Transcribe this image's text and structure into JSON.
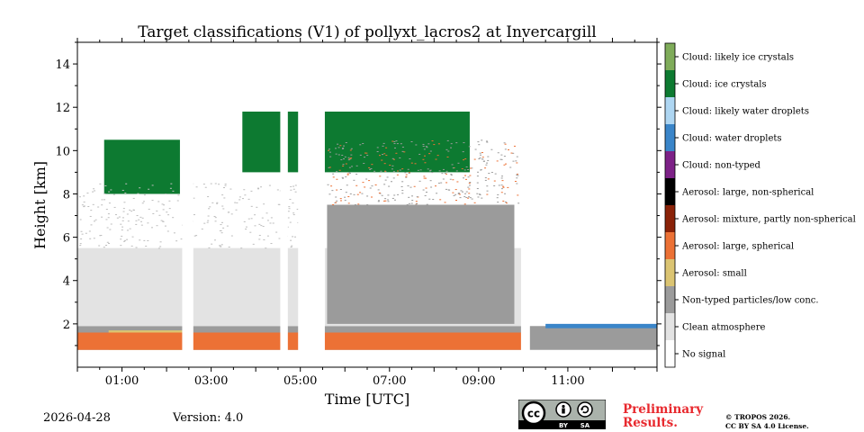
{
  "chart_data": {
    "type": "heatmap",
    "title": "Target classifications (V1) of pollyxt_lacros2 at Invercargill",
    "xlabel": "Time [UTC]",
    "ylabel": "Height [km]",
    "xlim_hours": [
      0,
      13.0
    ],
    "ylim_km": [
      0,
      15
    ],
    "x_ticks": [
      {
        "value": 1,
        "label": "01:00"
      },
      {
        "value": 3,
        "label": "03:00"
      },
      {
        "value": 5,
        "label": "05:00"
      },
      {
        "value": 7,
        "label": "07:00"
      },
      {
        "value": 9,
        "label": "09:00"
      },
      {
        "value": 11,
        "label": "11:00"
      }
    ],
    "y_ticks": [
      {
        "value": 2,
        "label": "2"
      },
      {
        "value": 4,
        "label": "4"
      },
      {
        "value": 6,
        "label": "6"
      },
      {
        "value": 8,
        "label": "8"
      },
      {
        "value": 10,
        "label": "10"
      },
      {
        "value": 12,
        "label": "12"
      },
      {
        "value": 14,
        "label": "14"
      }
    ],
    "classes": [
      {
        "label": "Cloud: likely ice crystals",
        "color": "#7fac5a"
      },
      {
        "label": "Cloud: ice crystals",
        "color": "#0d7a31"
      },
      {
        "label": "Cloud: likely water droplets",
        "color": "#aed6f2"
      },
      {
        "label": "Cloud: water droplets",
        "color": "#3a85c9"
      },
      {
        "label": "Cloud: non-typed",
        "color": "#7d2187"
      },
      {
        "label": "Aerosol: large, non-spherical",
        "color": "#000000"
      },
      {
        "label": "Aerosol: mixture, partly non-spherical",
        "color": "#8a2208"
      },
      {
        "label": "Aerosol: large, spherical",
        "color": "#ec7135"
      },
      {
        "label": "Aerosol: small",
        "color": "#dbc472"
      },
      {
        "label": "Non-typed particles/low conc.",
        "color": "#9b9b9b"
      },
      {
        "label": "Clean atmosphere",
        "color": "#e3e3e3"
      },
      {
        "label": "No signal",
        "color": "#ffffff"
      }
    ],
    "regions": [
      {
        "class": "Non-typed particles/low conc.",
        "t_start": 0,
        "t_end": 13.0,
        "h_bottom": 0.8,
        "h_top": 1.9
      },
      {
        "class": "Aerosol: small",
        "t_start": 0.7,
        "t_end": 2.4,
        "h_bottom": 0.8,
        "h_top": 1.7
      },
      {
        "class": "Aerosol: large, spherical",
        "t_start": 0,
        "t_end": 10.0,
        "h_bottom": 0.8,
        "h_top": 1.6
      },
      {
        "class": "Clean atmosphere",
        "t_start": 0,
        "t_end": 10.0,
        "h_bottom": 1.9,
        "h_top": 5.5
      },
      {
        "class": "Non-typed particles/low conc.",
        "t_start": 5.6,
        "t_end": 9.8,
        "h_bottom": 2.0,
        "h_top": 7.5
      },
      {
        "class": "Cloud: ice crystals",
        "t_start": 0.6,
        "t_end": 2.3,
        "h_bottom": 8.0,
        "h_top": 10.5
      },
      {
        "class": "Cloud: ice crystals",
        "t_start": 3.7,
        "t_end": 8.8,
        "h_bottom": 9.0,
        "h_top": 11.8
      },
      {
        "class": "Cloud: water droplets",
        "t_start": 10.5,
        "t_end": 13.0,
        "h_bottom": 1.8,
        "h_top": 2.0
      }
    ],
    "gaps_no_signal": [
      {
        "t_start": 2.35,
        "t_end": 2.6
      },
      {
        "t_start": 4.55,
        "t_end": 4.72
      },
      {
        "t_start": 4.95,
        "t_end": 5.55
      },
      {
        "t_start": 9.95,
        "t_end": 10.15
      }
    ]
  },
  "footer": {
    "date": "2026-04-28",
    "version": "Version: 4.0",
    "badge": {
      "by": "BY",
      "sa": "SA"
    },
    "preliminary": [
      "Preliminary",
      "Results."
    ],
    "copyright": [
      "© TROPOS 2026.",
      "CC BY SA 4.0 License."
    ]
  }
}
